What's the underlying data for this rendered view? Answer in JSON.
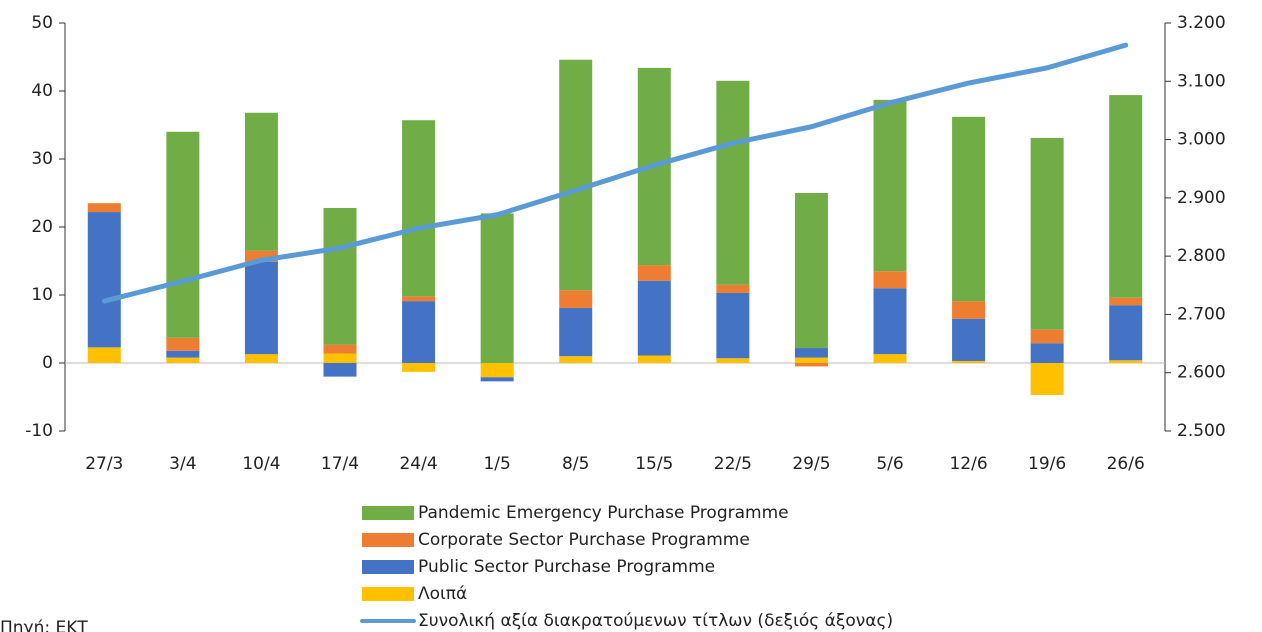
{
  "chart_data": {
    "type": "bar",
    "categories": [
      "27/3",
      "3/4",
      "10/4",
      "17/4",
      "24/4",
      "1/5",
      "8/5",
      "15/5",
      "22/5",
      "29/5",
      "5/6",
      "12/6",
      "19/6",
      "26/6"
    ],
    "series": [
      {
        "name": "Pandemic Emergency Purchase Programme",
        "color": "#70ad47",
        "values": [
          0,
          30.3,
          20.3,
          20.1,
          25.9,
          22.0,
          33.9,
          29.0,
          30.0,
          22.8,
          25.2,
          27.1,
          28.2,
          29.8
        ]
      },
      {
        "name": "Corporate Sector Purchase Programme",
        "color": "#ed7d31",
        "values": [
          1.3,
          1.9,
          1.6,
          1.3,
          0.7,
          0,
          2.6,
          2.3,
          1.2,
          -0.5,
          2.5,
          2.6,
          2.0,
          1.1
        ]
      },
      {
        "name": "Public Sector Purchase Programme",
        "color": "#4472c4",
        "values": [
          19.9,
          1.0,
          13.6,
          -2.0,
          9.1,
          -0.6,
          7.1,
          11.0,
          9.6,
          1.4,
          9.7,
          6.2,
          2.9,
          8.1
        ]
      },
      {
        "name": "Λοιπά",
        "color": "#ffc000",
        "values": [
          2.3,
          0.8,
          1.3,
          1.4,
          -1.3,
          -2.1,
          1.0,
          1.1,
          0.7,
          0.8,
          1.3,
          0.3,
          -4.7,
          0.4
        ]
      },
      {
        "name": "Συνολική αξία διακρατούμενων τίτλων (δεξιός άξονας)",
        "color": "#5b9bd5",
        "axis": "y2",
        "type": "line",
        "values": [
          2723,
          2757,
          2793,
          2814,
          2848,
          2871,
          2913,
          2956,
          2994,
          3022,
          3063,
          3097,
          3123,
          3162
        ]
      }
    ],
    "ylim": [
      -10,
      50
    ],
    "yticks": [
      -10,
      0,
      10,
      20,
      30,
      40,
      50
    ],
    "y2lim": [
      2500,
      3200
    ],
    "y2ticks": [
      {
        "value": 2500,
        "label": "2.500"
      },
      {
        "value": 2600,
        "label": "2.600"
      },
      {
        "value": 2700,
        "label": "2.700"
      },
      {
        "value": 2800,
        "label": "2.800"
      },
      {
        "value": 2900,
        "label": "2.900"
      },
      {
        "value": 3000,
        "label": "3.000"
      },
      {
        "value": 3100,
        "label": "3.100"
      },
      {
        "value": 3200,
        "label": "3.200"
      }
    ],
    "source": "Πηγή: ΕΚΤ"
  }
}
